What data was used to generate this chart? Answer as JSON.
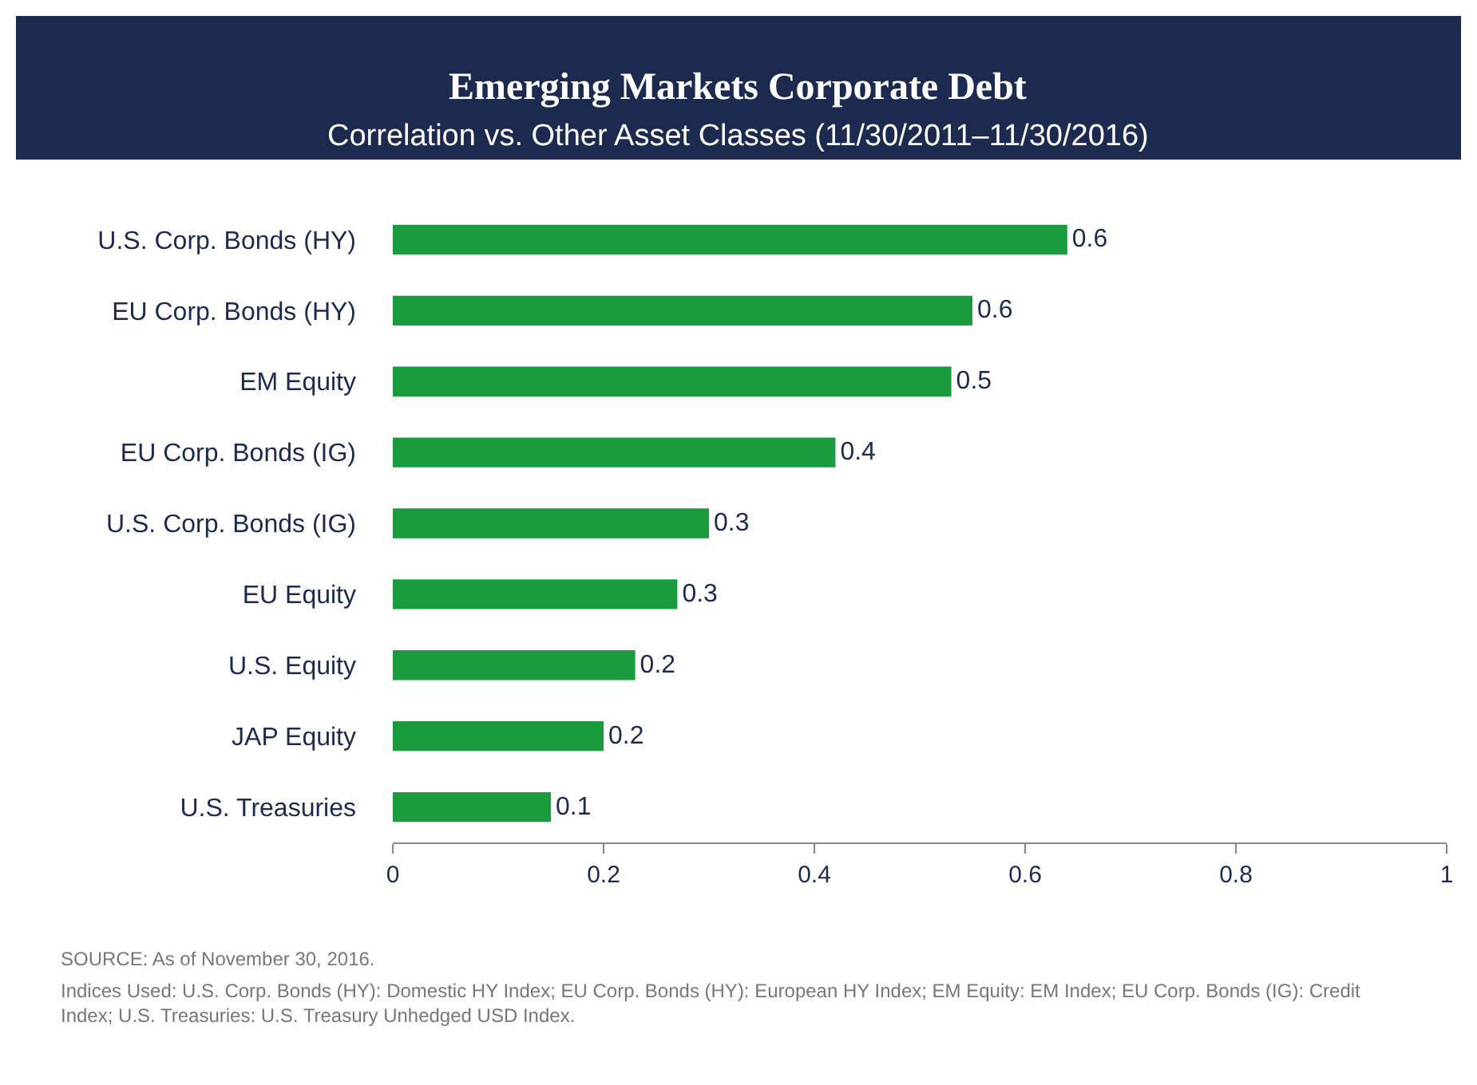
{
  "chart_data": {
    "type": "bar",
    "orientation": "horizontal",
    "title": "Emerging Markets Corporate Debt",
    "subtitle": "Correlation vs. Other Asset Classes (11/30/2011–11/30/2016)",
    "categories": [
      "U.S. Corp. Bonds (HY)",
      "EU Corp. Bonds (HY)",
      "EM Equity",
      "EU Corp. Bonds (IG)",
      "U.S. Corp. Bonds (IG)",
      "EU Equity",
      "U.S. Equity",
      "JAP Equity",
      "U.S. Treasuries"
    ],
    "values": [
      0.64,
      0.55,
      0.53,
      0.42,
      0.3,
      0.27,
      0.23,
      0.2,
      0.15
    ],
    "value_labels": [
      "0.6",
      "0.6",
      "0.5",
      "0.4",
      "0.3",
      "0.3",
      "0.2",
      "0.2",
      "0.1"
    ],
    "color": "#1a9c3e",
    "xlim": [
      0,
      1
    ],
    "xticks": [
      0,
      0.2,
      0.4,
      0.6,
      0.8,
      1
    ],
    "annotations": [
      "SOURCE: As of November 30, 2016.",
      "Indices Used: U.S. Corp. Bonds (HY): Domestic HY Index; EU Corp. Bonds (HY): European HY Index; EM Equity: EM Index; EU Corp. Bonds (IG): Credit Index; U.S. Treasuries: U.S. Treasury Unhedged USD Index."
    ]
  }
}
